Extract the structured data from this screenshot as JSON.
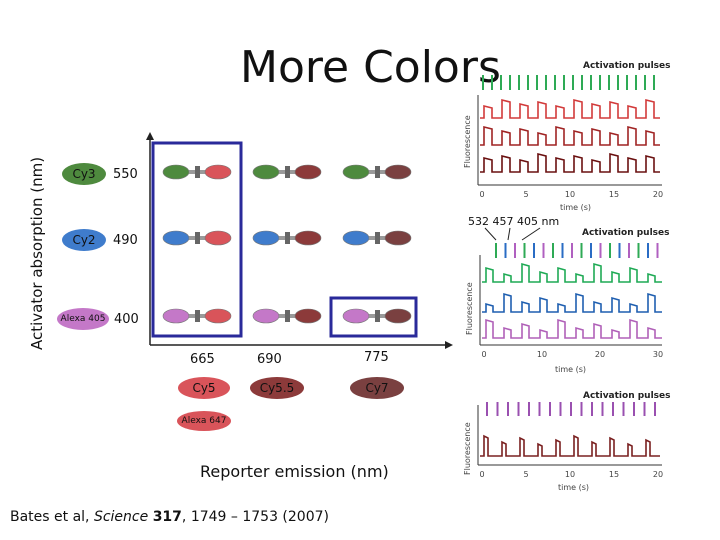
{
  "slide": {
    "title": "More Colors",
    "y_axis_label": "Activator absorption (nm)",
    "x_axis_label": "Reporter emission (nm)",
    "citation": {
      "authors": "Bates et al, ",
      "journal": "Science",
      "volume": "317",
      "pages": ", 1749 – 1753 (2007)"
    }
  },
  "activators": [
    {
      "name": "Cy3",
      "wavelength": "550",
      "color": "#4e8a3e"
    },
    {
      "name": "Cy2",
      "wavelength": "490",
      "color": "#3f7ccc"
    },
    {
      "name": "Alexa 405",
      "wavelength": "400",
      "color": "#c478c8"
    }
  ],
  "reporters": [
    {
      "name": "Cy5",
      "wavelength": "665",
      "color": "#d9545a"
    },
    {
      "name": "Alexa 647",
      "wavelength": "",
      "color": "#d9545a"
    },
    {
      "name": "Cy5.5",
      "wavelength": "690",
      "color": "#8c3a3a"
    },
    {
      "name": "Cy7",
      "wavelength": "775",
      "color": "#7a4040"
    }
  ],
  "panels": [
    {
      "activation_label": "Activation pulses",
      "ylabel": "Fluorescence",
      "xlabel": "time (s)",
      "xticks": [
        "0",
        "5",
        "10",
        "15",
        "20"
      ],
      "pulse_color": "#2eaa55",
      "trace_colors": [
        "#d23a3a",
        "#a02424",
        "#6a1010"
      ]
    },
    {
      "activation_label": "Activation pulses",
      "ylabel": "Fluorescence",
      "xlabel": "time (s)",
      "xticks": [
        "0",
        "10",
        "20",
        "30"
      ],
      "wavelength_labels": "532  457  405 nm",
      "pulse_colors": [
        "#2eaa55",
        "#2a6cc4",
        "#b060c0"
      ],
      "trace_colors": [
        "#1faa55",
        "#1f5fb0",
        "#b060b8"
      ]
    },
    {
      "activation_label": "Activation pulses",
      "ylabel": "Fluorescence",
      "xlabel": "time (s)",
      "xticks": [
        "0",
        "5",
        "10",
        "15",
        "20"
      ],
      "pulse_color": "#9a50b0",
      "trace_colors": [
        "#7a2020"
      ]
    }
  ]
}
